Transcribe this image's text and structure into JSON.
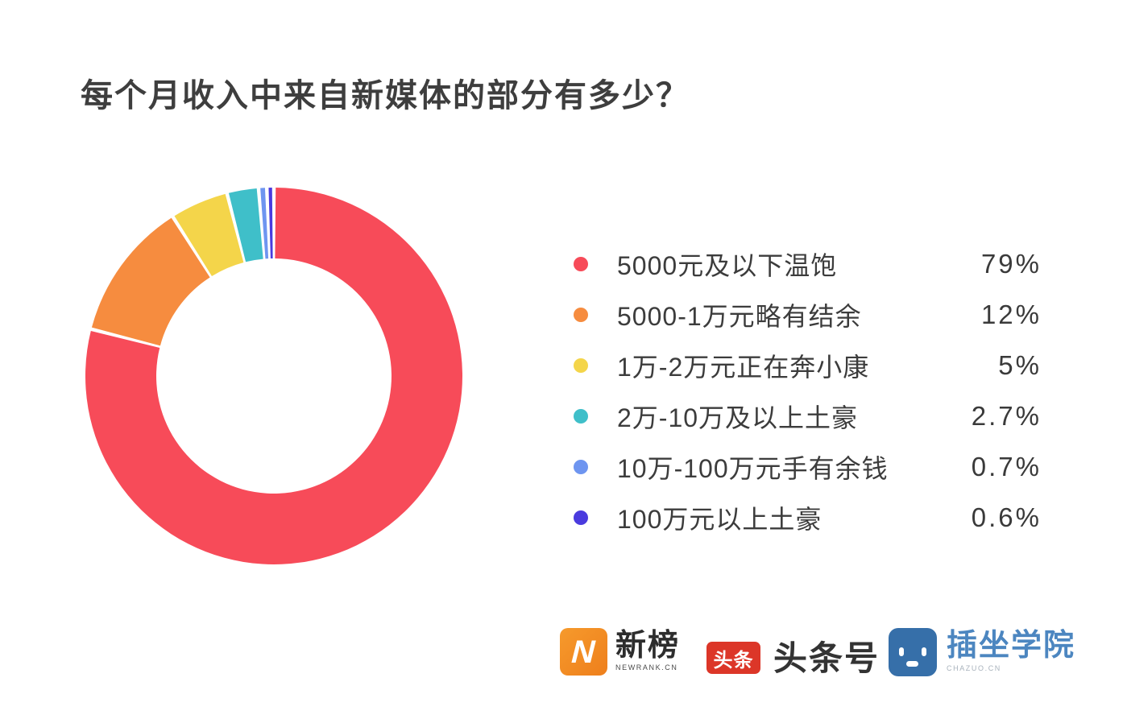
{
  "title": "每个月收入中来自新媒体的部分有多少？",
  "chart_data": {
    "type": "pie",
    "subtype": "donut",
    "title": "每个月收入中来自新媒体的部分有多少？",
    "unit": "%",
    "start_angle_deg": 0,
    "direction": "clockwise",
    "legend_position": "right",
    "categories": [
      "5000元及以下温饱",
      "5000-1万元略有结余",
      "1万-2万元正在奔小康",
      "2万-10万及以上土豪",
      "10万-100万元手有余钱",
      "100万元以上土豪"
    ],
    "values": [
      79,
      12,
      5,
      2.7,
      0.7,
      0.6
    ],
    "segments": [
      {
        "label": "5000元及以下温饱",
        "value": 79,
        "percent_label": "79%",
        "color": "#f74b59"
      },
      {
        "label": "5000-1万元略有结余",
        "value": 12,
        "percent_label": "12%",
        "color": "#f68c3f"
      },
      {
        "label": "1万-2万元正在奔小康",
        "value": 5,
        "percent_label": "5%",
        "color": "#f4d54a"
      },
      {
        "label": "2万-10万及以上土豪",
        "value": 2.7,
        "percent_label": "2.7%",
        "color": "#3fbfc9"
      },
      {
        "label": "10万-100万元手有余钱",
        "value": 0.7,
        "percent_label": "0.7%",
        "color": "#6e95f0"
      },
      {
        "label": "100万元以上土豪",
        "value": 0.6,
        "percent_label": "0.6%",
        "color": "#4a3bde"
      }
    ]
  },
  "footer": {
    "logos": {
      "newrank": {
        "name": "新榜",
        "icon_letter": "N",
        "subtext": "NEWRANK.CN"
      },
      "toutiao": {
        "icon_text": "头条",
        "name": "头条号"
      },
      "chazuo": {
        "name": "插坐学院",
        "subtext": "CHAZUO.CN"
      }
    }
  }
}
